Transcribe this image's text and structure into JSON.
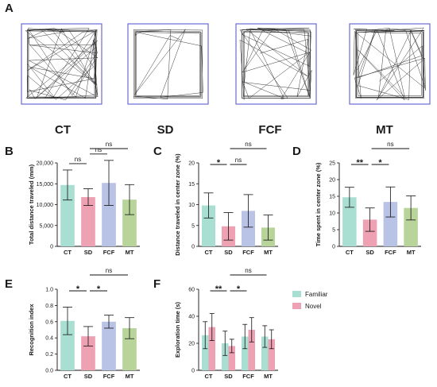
{
  "panel_letters": {
    "A": "A",
    "B": "B",
    "C": "C",
    "D": "D",
    "E": "E",
    "F": "F"
  },
  "colors": {
    "CT": "#a8dfd2",
    "SD": "#eda1b3",
    "FCF": "#b9c3e6",
    "MT": "#b8d49a",
    "Familiar": "#a8dfd2",
    "Novel": "#eda1b3",
    "track_frame": "#6a6cd6"
  },
  "track_panels": [
    {
      "label": "CT",
      "density": "high"
    },
    {
      "label": "SD",
      "density": "low"
    },
    {
      "label": "FCF",
      "density": "medium"
    },
    {
      "label": "MT",
      "density": "medium"
    }
  ],
  "chart_data": [
    {
      "panel": "B",
      "type": "bar",
      "categories": [
        "CT",
        "SD",
        "FCF",
        "MT"
      ],
      "values": [
        14700,
        11800,
        15200,
        11200
      ],
      "errors": [
        3600,
        2000,
        5400,
        3600
      ],
      "ylabel": "Total distance traveled (mm)",
      "ylim": [
        0,
        20000
      ],
      "yticks": [
        "0",
        "5,000",
        "10,000",
        "15,000",
        "20,000"
      ],
      "ytick_values": [
        0,
        5000,
        10000,
        15000,
        20000
      ],
      "significance": [
        {
          "from": 0,
          "to": 1,
          "label": "ns",
          "level": 0
        },
        {
          "from": 1,
          "to": 2,
          "label": "ns",
          "level": 0
        },
        {
          "from": 1,
          "to": 3,
          "label": "ns",
          "level": 1
        }
      ]
    },
    {
      "panel": "C",
      "type": "bar",
      "categories": [
        "CT",
        "SD",
        "FCF",
        "MT"
      ],
      "values": [
        9.8,
        4.8,
        8.5,
        4.5
      ],
      "errors": [
        3.0,
        3.3,
        3.9,
        3.0
      ],
      "ylabel": "Distance traveled in center zone (%)",
      "ylim": [
        0,
        20
      ],
      "yticks": [
        "0",
        "5",
        "10",
        "15",
        "20"
      ],
      "ytick_values": [
        0,
        5,
        10,
        15,
        20
      ],
      "significance": [
        {
          "from": 0,
          "to": 1,
          "label": "*",
          "level": 0
        },
        {
          "from": 1,
          "to": 2,
          "label": "ns",
          "level": 0
        },
        {
          "from": 1,
          "to": 3,
          "label": "ns",
          "level": 1
        }
      ]
    },
    {
      "panel": "D",
      "type": "bar",
      "categories": [
        "CT",
        "SD",
        "FCF",
        "MT"
      ],
      "values": [
        14.7,
        8.0,
        13.3,
        11.5
      ],
      "errors": [
        3.0,
        3.5,
        4.5,
        3.6
      ],
      "ylabel": "Time spent in center zone (%)",
      "ylim": [
        0,
        25
      ],
      "yticks": [
        "0",
        "5",
        "10",
        "15",
        "20",
        "25"
      ],
      "ytick_values": [
        0,
        5,
        10,
        15,
        20,
        25
      ],
      "significance": [
        {
          "from": 0,
          "to": 1,
          "label": "**",
          "level": 0
        },
        {
          "from": 1,
          "to": 2,
          "label": "*",
          "level": 0
        },
        {
          "from": 1,
          "to": 3,
          "label": "ns",
          "level": 1
        }
      ]
    },
    {
      "panel": "E",
      "type": "bar",
      "categories": [
        "CT",
        "SD",
        "FCF",
        "MT"
      ],
      "values": [
        0.61,
        0.42,
        0.6,
        0.52
      ],
      "errors": [
        0.17,
        0.12,
        0.08,
        0.13
      ],
      "ylabel": "Recognition index",
      "ylim": [
        0,
        1.0
      ],
      "yticks": [
        "0.0",
        "0.2",
        "0.4",
        "0.6",
        "0.8",
        "1.0"
      ],
      "ytick_values": [
        0,
        0.2,
        0.4,
        0.6,
        0.8,
        1.0
      ],
      "significance": [
        {
          "from": 0,
          "to": 1,
          "label": "*",
          "level": 0
        },
        {
          "from": 1,
          "to": 2,
          "label": "*",
          "level": 0
        },
        {
          "from": 1,
          "to": 3,
          "label": "ns",
          "level": 1
        }
      ]
    },
    {
      "panel": "F",
      "type": "bar",
      "categories": [
        "CT",
        "SD",
        "FCF",
        "MT"
      ],
      "series": [
        {
          "name": "Familiar",
          "values": [
            26,
            20,
            25,
            25
          ],
          "errors": [
            10,
            9,
            9,
            8
          ]
        },
        {
          "name": "Novel",
          "values": [
            32,
            18,
            30,
            23
          ],
          "errors": [
            10,
            5,
            9,
            7
          ]
        }
      ],
      "ylabel": "Exploration time (s)",
      "ylim": [
        0,
        60
      ],
      "yticks": [
        "0",
        "20",
        "40",
        "60"
      ],
      "ytick_values": [
        0,
        20,
        40,
        60
      ],
      "significance": [
        {
          "from": 0,
          "to": 1,
          "label": "**",
          "level": 0
        },
        {
          "from": 1,
          "to": 2,
          "label": "*",
          "level": 0
        },
        {
          "from": 1,
          "to": 3,
          "label": "ns",
          "level": 1
        }
      ],
      "legend": [
        "Familiar",
        "Novel"
      ],
      "legend_position": "right"
    }
  ]
}
